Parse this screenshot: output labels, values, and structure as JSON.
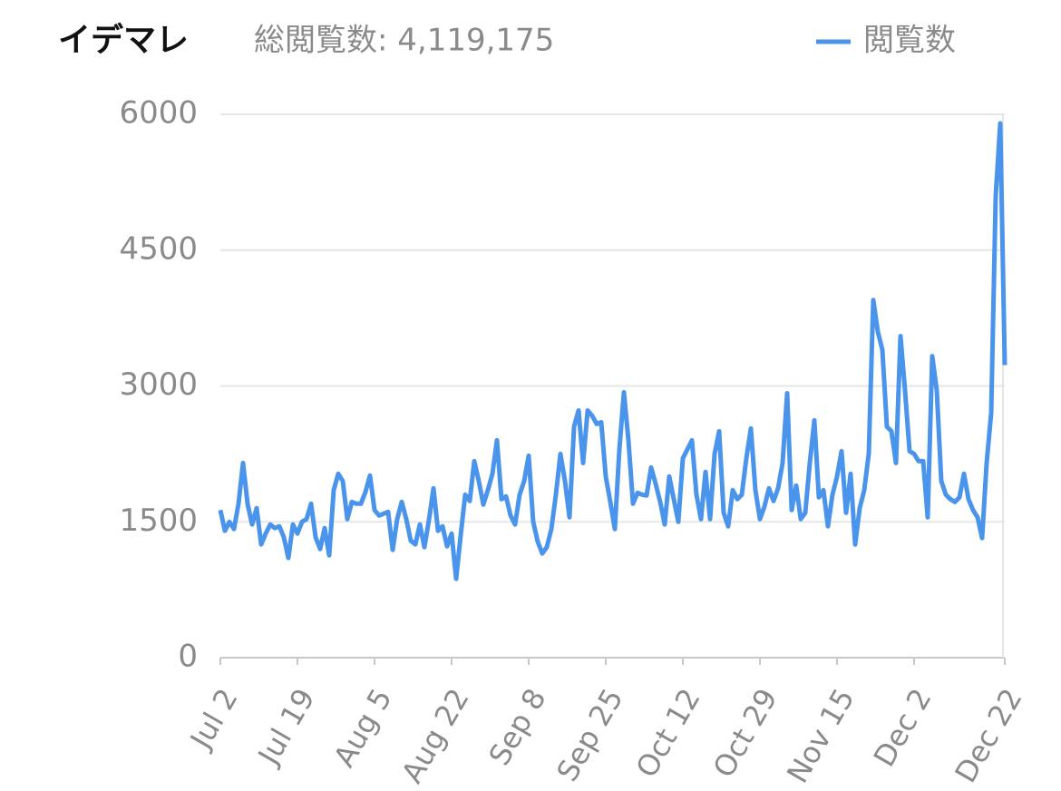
{
  "chart_data": {
    "type": "line",
    "title": "イデマレ",
    "subtitle": "総閲覧数: 4,119,175",
    "categories": [
      "Jul 2",
      null,
      null,
      null,
      null,
      null,
      null,
      null,
      null,
      null,
      null,
      null,
      null,
      null,
      null,
      null,
      null,
      "Jul 19",
      null,
      null,
      null,
      null,
      null,
      null,
      null,
      null,
      null,
      null,
      null,
      null,
      null,
      null,
      null,
      null,
      "Aug 5",
      null,
      null,
      null,
      null,
      null,
      null,
      null,
      null,
      null,
      null,
      null,
      null,
      null,
      null,
      null,
      null,
      "Aug 22",
      null,
      null,
      null,
      null,
      null,
      null,
      null,
      null,
      null,
      null,
      null,
      null,
      null,
      null,
      null,
      null,
      "Sep 8",
      null,
      null,
      null,
      null,
      null,
      null,
      null,
      null,
      null,
      null,
      null,
      null,
      null,
      null,
      null,
      null,
      "Sep 25",
      null,
      null,
      null,
      null,
      null,
      null,
      null,
      null,
      null,
      null,
      null,
      null,
      null,
      null,
      null,
      null,
      "Oct 12",
      null,
      null,
      null,
      null,
      null,
      null,
      null,
      null,
      null,
      null,
      null,
      null,
      null,
      null,
      null,
      null,
      "Oct 29",
      null,
      null,
      null,
      null,
      null,
      null,
      null,
      null,
      null,
      null,
      null,
      null,
      null,
      null,
      null,
      null,
      "Nov 15",
      null,
      null,
      null,
      null,
      null,
      null,
      null,
      null,
      null,
      null,
      null,
      null,
      null,
      null,
      null,
      null,
      "Dec 2",
      null,
      null,
      null,
      null,
      null,
      null,
      null,
      null,
      null,
      null,
      null,
      null,
      null,
      null,
      null,
      null,
      null,
      null,
      null,
      "Dec 22"
    ],
    "series": [
      {
        "name": "閲覧数",
        "color": "#4a94ec",
        "values": [
          1630,
          1400,
          1500,
          1420,
          1700,
          2150,
          1700,
          1470,
          1650,
          1250,
          1370,
          1470,
          1430,
          1450,
          1330,
          1100,
          1470,
          1370,
          1500,
          1530,
          1700,
          1330,
          1200,
          1430,
          1130,
          1850,
          2030,
          1950,
          1530,
          1720,
          1700,
          1700,
          1830,
          2010,
          1630,
          1570,
          1590,
          1610,
          1190,
          1530,
          1720,
          1530,
          1290,
          1250,
          1470,
          1220,
          1520,
          1870,
          1400,
          1450,
          1230,
          1370,
          870,
          1350,
          1800,
          1730,
          2170,
          1950,
          1690,
          1850,
          2030,
          2400,
          1750,
          1780,
          1570,
          1470,
          1800,
          1950,
          2230,
          1500,
          1280,
          1150,
          1220,
          1420,
          1800,
          2250,
          1950,
          1550,
          2550,
          2730,
          2150,
          2730,
          2670,
          2580,
          2600,
          2000,
          1720,
          1420,
          2300,
          2930,
          2400,
          1700,
          1820,
          1800,
          1790,
          2100,
          1920,
          1720,
          1470,
          2000,
          1750,
          1500,
          2200,
          2300,
          2400,
          1800,
          1530,
          2050,
          1530,
          2250,
          2500,
          1600,
          1450,
          1850,
          1750,
          1800,
          2200,
          2530,
          1850,
          1530,
          1670,
          1870,
          1730,
          1870,
          2150,
          2920,
          1630,
          1900,
          1530,
          1600,
          2150,
          2620,
          1770,
          1850,
          1450,
          1800,
          2000,
          2280,
          1600,
          2030,
          1250,
          1650,
          1850,
          2250,
          3950,
          3600,
          3400,
          2550,
          2500,
          2150,
          3550,
          2950,
          2280,
          2250,
          2170,
          2170,
          1550,
          3330,
          2950,
          1950,
          1800,
          1750,
          1720,
          1770,
          2030,
          1750,
          1630,
          1550,
          1320,
          2150,
          2700,
          5100,
          5900,
          3230
        ]
      }
    ],
    "ylim": [
      0,
      6000
    ],
    "yticks": [
      0,
      1500,
      3000,
      4500,
      6000
    ],
    "grid": true
  }
}
